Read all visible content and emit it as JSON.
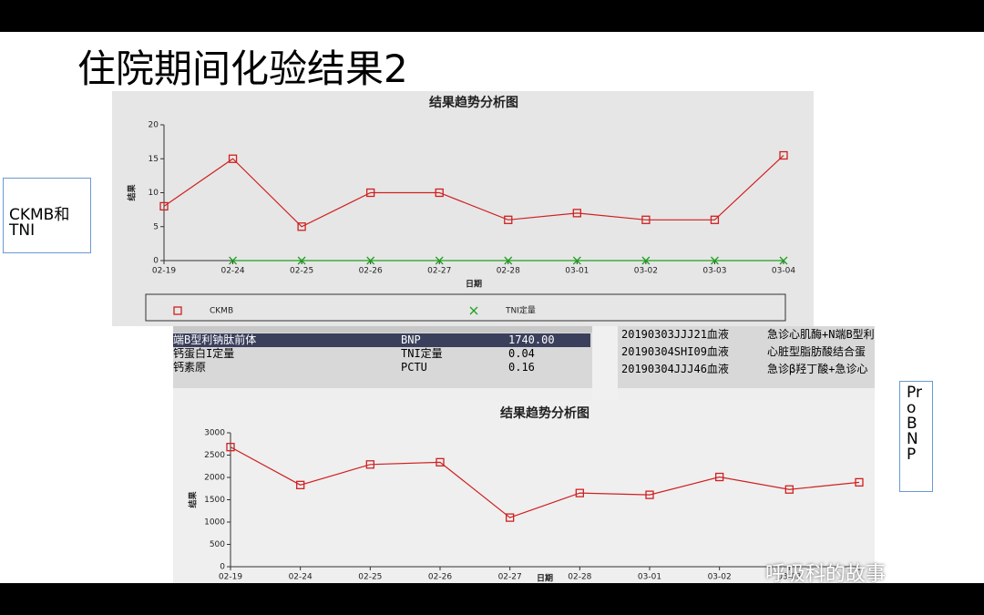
{
  "slide": {
    "title": "住院期间化验结果2",
    "labels": [
      "CKMB和TNI",
      "ProBNP"
    ],
    "watermark": "呼吸科的故事"
  },
  "table": {
    "rows": [
      [
        "端B型利钠肽前体",
        "BNP",
        "1740.00"
      ],
      [
        "钙蛋白I定量",
        "TNI定量",
        "0.04"
      ],
      [
        "钙素原",
        "PCTU",
        "0.16"
      ]
    ],
    "right_rows": [
      [
        "20190303JJJ21血液",
        "急诊心肌酶+N端B型利"
      ],
      [
        "20190304SHI09血液",
        "心脏型脂肪酸结合蛋"
      ],
      [
        "20190304JJJ46血液",
        "急诊β羟丁酸+急诊心"
      ]
    ]
  },
  "chart_data": [
    {
      "type": "line",
      "title": "结果趋势分析图",
      "x_label": "日期",
      "y_label": "结果",
      "categories": [
        "02-19",
        "02-24",
        "02-25",
        "02-26",
        "02-27",
        "02-28",
        "03-01",
        "03-02",
        "03-03",
        "03-04"
      ],
      "series": [
        {
          "name": "CKMB",
          "color": "#d02020",
          "marker": "square",
          "values": [
            8,
            15,
            5,
            10,
            10,
            6,
            7,
            6,
            6,
            15.5
          ]
        },
        {
          "name": "TNI定量",
          "color": "#20a020",
          "marker": "x",
          "values": [
            null,
            0,
            0,
            0,
            0,
            0,
            0,
            0,
            0,
            0
          ]
        }
      ],
      "ylim": [
        0,
        20
      ],
      "yticks": [
        0,
        5,
        10,
        15,
        20
      ],
      "legend": "bottom"
    },
    {
      "type": "line",
      "title": "结果趋势分析图",
      "x_label": "日期",
      "y_label": "结果",
      "categories": [
        "02-19",
        "02-24",
        "02-25",
        "02-26",
        "02-27",
        "02-28",
        "03-01",
        "03-02",
        "03-03",
        null
      ],
      "values": [
        2680,
        1830,
        2290,
        2340,
        1100,
        1650,
        1610,
        2010,
        1730,
        1890
      ],
      "color": "#d02020",
      "marker": "square",
      "ylim": [
        0,
        3000
      ],
      "yticks": [
        0,
        500,
        1000,
        1500,
        2000,
        2500,
        3000
      ]
    }
  ]
}
